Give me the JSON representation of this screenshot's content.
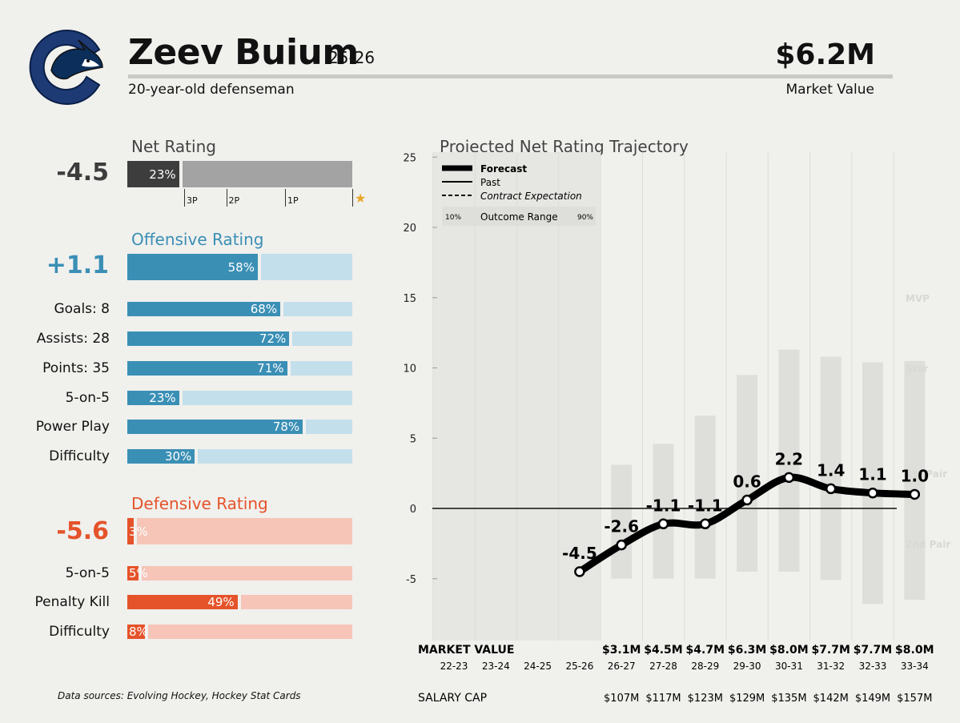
{
  "header": {
    "name": "Zeev Buium",
    "season": "25-26",
    "subtitle": "20-year-old defenseman",
    "market_value": "$6.2M",
    "market_value_label": "Market Value"
  },
  "net_rating": {
    "title": "Net Rating",
    "value": "-4.5",
    "pct": 23,
    "pct_label": "23%",
    "ticks": [
      {
        "label": "3P",
        "pct": 0
      },
      {
        "label": "2P",
        "pct": 25
      },
      {
        "label": "1P",
        "pct": 60
      },
      {
        "label": "★",
        "pct": 100
      }
    ],
    "color": "#3d3d3d",
    "track_color": "#a3a3a3"
  },
  "offensive": {
    "title": "Offensive Rating",
    "value": "+1.1",
    "pct": 58,
    "pct_label": "58%",
    "color": "#3a8fb5",
    "track_color": "#c3dfeb",
    "rows": [
      {
        "label": "Goals: 8",
        "pct": 68,
        "pct_label": "68%"
      },
      {
        "label": "Assists: 28",
        "pct": 72,
        "pct_label": "72%"
      },
      {
        "label": "Points: 35",
        "pct": 71,
        "pct_label": "71%"
      },
      {
        "label": "5-on-5",
        "pct": 23,
        "pct_label": "23%"
      },
      {
        "label": "Power Play",
        "pct": 78,
        "pct_label": "78%"
      },
      {
        "label": "Difficulty",
        "pct": 30,
        "pct_label": "30%"
      }
    ]
  },
  "defensive": {
    "title": "Defensive Rating",
    "value": "-5.6",
    "pct": 3,
    "pct_label": "3%",
    "color": "#e5532a",
    "track_color": "#f6c5b8",
    "rows": [
      {
        "label": "5-on-5",
        "pct": 5,
        "pct_label": "5%"
      },
      {
        "label": "Penalty Kill",
        "pct": 49,
        "pct_label": "49%"
      },
      {
        "label": "Difficulty",
        "pct": 8,
        "pct_label": "8%"
      }
    ]
  },
  "sources": "Data sources: Evolving Hockey, Hockey Stat Cards",
  "chart_data": {
    "type": "line",
    "title": "Projected Net Rating Trajectory",
    "xlabel": "",
    "ylabel": "",
    "ylim": [
      -9,
      25
    ],
    "yticks": [
      -5,
      0,
      5,
      10,
      15,
      20,
      25
    ],
    "categories": [
      "22-23",
      "23-24",
      "24-25",
      "25-26",
      "26-27",
      "27-28",
      "28-29",
      "29-30",
      "30-31",
      "31-32",
      "32-33",
      "33-34"
    ],
    "forecast": [
      null,
      null,
      null,
      -4.5,
      -2.6,
      -1.1,
      -1.1,
      0.6,
      2.2,
      1.4,
      1.1,
      1.0
    ],
    "forecast_labels": [
      "",
      "",
      "",
      "-4.5",
      "-2.6",
      "-1.1",
      "-1.1",
      "0.6",
      "2.2",
      "1.4",
      "1.1",
      "1.0"
    ],
    "outcome_range": [
      null,
      null,
      null,
      null,
      [
        -5,
        3.1
      ],
      [
        -5,
        4.6
      ],
      [
        -5,
        6.6
      ],
      [
        -4.5,
        9.5
      ],
      [
        -4.5,
        11.3
      ],
      [
        -5.1,
        10.8
      ],
      [
        -6.8,
        10.4
      ],
      [
        -6.5,
        10.5
      ]
    ],
    "tiers": [
      {
        "label": "MVP",
        "y": 15
      },
      {
        "label": "Star",
        "y": 10
      },
      {
        "label": "1st Pair",
        "y": 2.5
      },
      {
        "label": "2nd Pair",
        "y": -2.5
      }
    ],
    "legend": {
      "forecast": "Forecast",
      "past": "Past",
      "contract": "Contract Expectation",
      "range": "Outcome Range",
      "range_low": "10%",
      "range_high": "90%",
      "placement": "top-left"
    },
    "market_value_title": "MARKET VALUE",
    "market_values": [
      "",
      "",
      "",
      "",
      "$3.1M",
      "$4.5M",
      "$4.7M",
      "$6.3M",
      "$8.0M",
      "$7.7M",
      "$7.7M",
      "$8.0M"
    ],
    "salary_cap_title": "SALARY CAP",
    "salary_caps": [
      "",
      "",
      "",
      "",
      "$107M",
      "$117M",
      "$123M",
      "$129M",
      "$135M",
      "$142M",
      "$149M",
      "$157M"
    ],
    "colors": {
      "line": "#000000",
      "range": "#dededb",
      "past_shade": "#e6e6e3",
      "grid": "#dcdcd9"
    }
  }
}
